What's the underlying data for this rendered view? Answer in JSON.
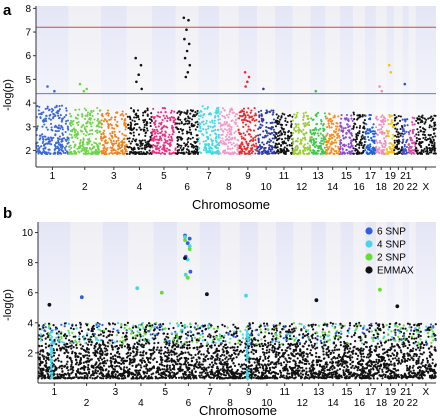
{
  "panels": [
    {
      "letter": "a",
      "ylabel": "-log(p)",
      "xlabel": "Chromosome",
      "yticks": [
        2,
        3,
        4,
        5,
        6,
        7,
        8
      ],
      "ylim": [
        1.3,
        8.1
      ],
      "threshold_red": 7.2,
      "threshold_blue": 4.4,
      "threshold_red_color": "#e0453a",
      "threshold_blue_color": "#5b7fc9"
    },
    {
      "letter": "b",
      "ylabel": "-log(p)",
      "xlabel": "Chromosome",
      "yticks": [
        2,
        4,
        6,
        8,
        10
      ],
      "ylim": [
        0,
        10.7
      ]
    }
  ],
  "chart_data": [
    {
      "type": "scatter",
      "title": "",
      "xlabel": "Chromosome",
      "ylabel": "-log(p)",
      "ylim": [
        1.3,
        8.1
      ],
      "grid": false,
      "chromosomes": [
        "1",
        "2",
        "3",
        "4",
        "5",
        "6",
        "7",
        "8",
        "9",
        "10",
        "11",
        "12",
        "13",
        "14",
        "15",
        "16",
        "17",
        "18",
        "19",
        "20",
        "21",
        "22",
        "X"
      ],
      "chromosome_label_rows": {
        "top": [
          "1",
          "3",
          "5",
          "7",
          "9",
          "11",
          "13",
          "15",
          "17",
          "19",
          "21"
        ],
        "bottom": [
          "2",
          "4",
          "6",
          "8",
          "10",
          "12",
          "14",
          "16",
          "18",
          "20",
          "22",
          "X"
        ]
      },
      "chromosome_colors": [
        "#3a68d8",
        "#6fd44a",
        "#f0821e",
        "#111111",
        "#ef2f7e",
        "#111111",
        "#43d8e6",
        "#f49ac8",
        "#ee2a2a",
        "#2d3aa3",
        "#111111",
        "#9acd32",
        "#3ec84a",
        "#ff8c1a",
        "#8a4bd0",
        "#111111",
        "#1e5bd8",
        "#f08cc0",
        "#f2c21a",
        "#111111",
        "#3a4fcf",
        "#d94aa0",
        "#111111"
      ],
      "chromosome_baseline_max": [
        3.9,
        3.8,
        3.7,
        3.8,
        3.8,
        3.7,
        3.9,
        3.8,
        3.8,
        3.7,
        3.6,
        3.6,
        3.6,
        3.6,
        3.5,
        3.6,
        3.5,
        3.5,
        3.5,
        3.5,
        3.4,
        3.4,
        3.5
      ],
      "highlight_points": [
        {
          "chromosome": "1",
          "values": [
            4.7,
            4.5
          ]
        },
        {
          "chromosome": "2",
          "values": [
            4.8,
            4.6,
            4.5
          ]
        },
        {
          "chromosome": "4",
          "values": [
            5.9,
            5.6,
            5.2,
            4.9,
            4.6
          ]
        },
        {
          "chromosome": "6",
          "values": [
            7.6,
            7.5,
            7.1,
            6.7,
            6.5,
            6.2,
            5.9,
            5.6,
            5.3,
            5.1
          ]
        },
        {
          "chromosome": "9",
          "values": [
            5.3,
            5.1,
            4.9,
            4.7
          ]
        },
        {
          "chromosome": "10",
          "values": [
            4.6
          ]
        },
        {
          "chromosome": "13",
          "values": [
            4.5
          ]
        },
        {
          "chromosome": "18",
          "values": [
            4.7,
            4.5
          ]
        },
        {
          "chromosome": "19",
          "values": [
            5.6,
            5.3
          ]
        },
        {
          "chromosome": "21",
          "values": [
            4.8
          ]
        }
      ]
    },
    {
      "type": "scatter",
      "title": "",
      "xlabel": "Chromosome",
      "ylabel": "-log(p)",
      "ylim": [
        0,
        10.7
      ],
      "grid": false,
      "legend_position": "top-right",
      "chromosomes": [
        "1",
        "2",
        "3",
        "4",
        "5",
        "6",
        "7",
        "8",
        "9",
        "10",
        "11",
        "12",
        "13",
        "14",
        "15",
        "16",
        "17",
        "18",
        "19",
        "20",
        "21",
        "22",
        "X"
      ],
      "chromosome_label_rows": {
        "top": [
          "1",
          "3",
          "5",
          "7",
          "9",
          "11",
          "13",
          "15",
          "17",
          "19",
          "21",
          "X"
        ],
        "bottom": [
          "2",
          "4",
          "6",
          "8",
          "10",
          "12",
          "14",
          "16",
          "18",
          "20",
          "22"
        ]
      },
      "series": [
        {
          "name": "6 SNP",
          "color": "#2e5fe0"
        },
        {
          "name": "4 SNP",
          "color": "#46d6ea"
        },
        {
          "name": "2 SNP",
          "color": "#66dd33"
        },
        {
          "name": "EMMAX",
          "color": "#111111"
        }
      ],
      "highlight_points": [
        {
          "chromosome": "6",
          "series": "6 SNP",
          "values": [
            9.8,
            9.6,
            9.3,
            8.4,
            7.4
          ]
        },
        {
          "chromosome": "6",
          "series": "4 SNP",
          "values": [
            9.7,
            9.1,
            8.2,
            7.2
          ]
        },
        {
          "chromosome": "6",
          "series": "2 SNP",
          "values": [
            9.5,
            8.9,
            7.0
          ]
        },
        {
          "chromosome": "6",
          "series": "EMMAX",
          "values": [
            8.3
          ]
        },
        {
          "chromosome": "1",
          "series": "EMMAX",
          "values": [
            5.2
          ]
        },
        {
          "chromosome": "2",
          "series": "6 SNP",
          "values": [
            5.7
          ]
        },
        {
          "chromosome": "4",
          "series": "4 SNP",
          "values": [
            6.3
          ]
        },
        {
          "chromosome": "5",
          "series": "2 SNP",
          "values": [
            6.0
          ]
        },
        {
          "chromosome": "7",
          "series": "EMMAX",
          "values": [
            5.9
          ]
        },
        {
          "chromosome": "9",
          "series": "4 SNP",
          "values": [
            5.8
          ]
        },
        {
          "chromosome": "13",
          "series": "EMMAX",
          "values": [
            5.5
          ]
        },
        {
          "chromosome": "18",
          "series": "2 SNP",
          "values": [
            6.2
          ]
        },
        {
          "chromosome": "20",
          "series": "EMMAX",
          "values": [
            5.1
          ]
        }
      ]
    }
  ]
}
